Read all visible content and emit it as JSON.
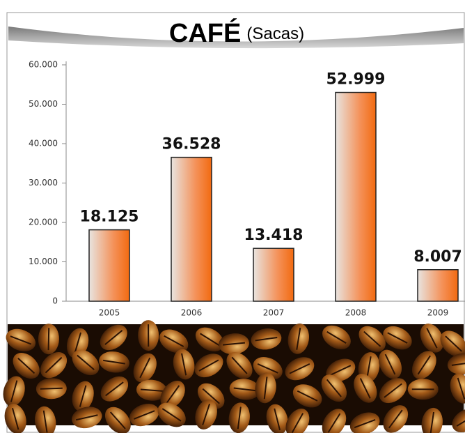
{
  "chart_data": {
    "type": "bar",
    "title": "CAFÉ",
    "subtitle": "(Sacas)",
    "categories": [
      "2005",
      "2006",
      "2007",
      "2008",
      "2009"
    ],
    "values": [
      18125,
      36528,
      13418,
      52999,
      8007
    ],
    "value_labels": [
      "18.125",
      "36.528",
      "13.418",
      "52.999",
      "8.007"
    ],
    "color": "#f26a10",
    "ylim": [
      0,
      60000
    ],
    "yticks": [
      0,
      {
        "value": 10000,
        "label": "10.000"
      },
      {
        "value": 20000,
        "label": "20.000"
      },
      {
        "value": 30000,
        "label": "30.000"
      },
      {
        "value": 40000,
        "label": "40.000"
      },
      {
        "value": 50000,
        "label": "50.000"
      },
      {
        "value": 60000,
        "label": "60.000"
      }
    ],
    "grid": false
  }
}
